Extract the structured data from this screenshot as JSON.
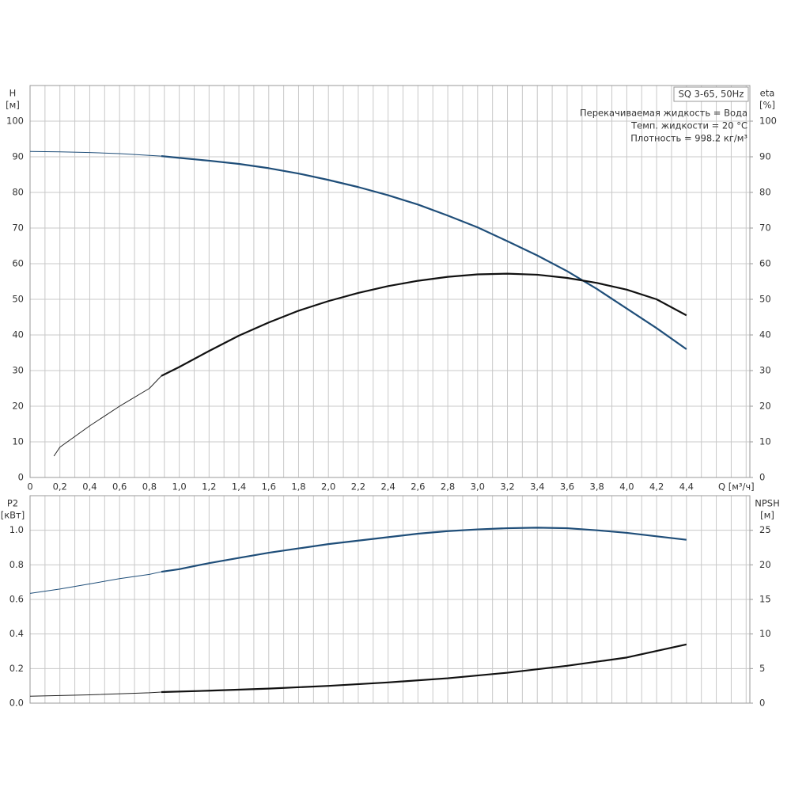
{
  "chart_data": [
    {
      "type": "line",
      "y_label": [
        "H",
        "[м]"
      ],
      "y2_label": [
        "eta",
        "[%]"
      ],
      "x_label": "Q [м³/ч]",
      "box_label": "SQ 3-65, 50Hz",
      "annotations": [
        "Перекачиваемая жидкость = Вода",
        "Темп. жидкости = 20 °C",
        "Плотность = 998.2 кг/м³"
      ],
      "xlim": [
        0,
        4.825
      ],
      "ylim": [
        0,
        110
      ],
      "y2lim": [
        0,
        110
      ],
      "xticks": [
        0,
        {
          "value": 0.2,
          "label": "0,2"
        },
        {
          "value": 0.4,
          "label": "0,4"
        },
        {
          "value": 0.6,
          "label": "0,6"
        },
        {
          "value": 0.8,
          "label": "0,8"
        },
        {
          "value": 1.0,
          "label": "1,0"
        },
        {
          "value": 1.2,
          "label": "1,2"
        },
        {
          "value": 1.4,
          "label": "1,4"
        },
        {
          "value": 1.6,
          "label": "1,6"
        },
        {
          "value": 1.8,
          "label": "1,8"
        },
        {
          "value": 2.0,
          "label": "2,0"
        },
        {
          "value": 2.2,
          "label": "2,2"
        },
        {
          "value": 2.4,
          "label": "2,4"
        },
        {
          "value": 2.6,
          "label": "2,6"
        },
        {
          "value": 2.8,
          "label": "2,8"
        },
        {
          "value": 3.0,
          "label": "3,0"
        },
        {
          "value": 3.2,
          "label": "3,2"
        },
        {
          "value": 3.4,
          "label": "3,4"
        },
        {
          "value": 3.6,
          "label": "3,6"
        },
        {
          "value": 3.8,
          "label": "3,8"
        },
        {
          "value": 4.0,
          "label": "4,0"
        },
        {
          "value": 4.2,
          "label": "4,2"
        },
        {
          "value": 4.4,
          "label": "4,4"
        }
      ],
      "x_minor_ticks": [
        0.1,
        0.3,
        0.5,
        0.7,
        0.9,
        1.1,
        1.3,
        1.5,
        1.7,
        1.9,
        2.1,
        2.3,
        2.5,
        2.7,
        2.9,
        3.1,
        3.3,
        3.5,
        3.7,
        3.9,
        4.1,
        4.3,
        4.5,
        4.6,
        4.7,
        4.8
      ],
      "yticks": [
        0,
        10,
        20,
        30,
        40,
        50,
        60,
        70,
        80,
        90,
        100
      ],
      "y2ticks": [
        0,
        10,
        20,
        30,
        40,
        50,
        60,
        70,
        80,
        90,
        100
      ],
      "grid": true,
      "series": [
        {
          "color": "#1f4e79",
          "width": 1,
          "x": [
            0,
            0.2,
            0.4,
            0.6,
            0.8,
            0.88
          ],
          "values": [
            91.5,
            91.4,
            91.2,
            90.9,
            90.4,
            90.2
          ]
        },
        {
          "color": "#1f4e79",
          "width": 2.2,
          "x": [
            0.88,
            1.0,
            1.2,
            1.4,
            1.6,
            1.8,
            2.0,
            2.2,
            2.4,
            2.6,
            2.8,
            3.0,
            3.2,
            3.4,
            3.6,
            3.8,
            4.0,
            4.2,
            4.4
          ],
          "values": [
            90.2,
            89.7,
            88.9,
            88.0,
            86.8,
            85.3,
            83.5,
            81.5,
            79.2,
            76.6,
            73.5,
            70.2,
            66.3,
            62.3,
            57.9,
            52.9,
            47.4,
            41.9,
            36.0
          ]
        },
        {
          "color": "#222222",
          "width": 1,
          "axis": "y2",
          "x": [
            0.16,
            0.2,
            0.4,
            0.6,
            0.8,
            0.88
          ],
          "values": [
            6,
            8.5,
            14.5,
            20,
            25,
            28.5
          ]
        },
        {
          "color": "#111111",
          "width": 2.2,
          "axis": "y2",
          "x": [
            0.88,
            1.0,
            1.2,
            1.4,
            1.6,
            1.8,
            2.0,
            2.2,
            2.4,
            2.6,
            2.8,
            3.0,
            3.2,
            3.4,
            3.6,
            3.8,
            4.0,
            4.2,
            4.4
          ],
          "values": [
            28.5,
            31,
            35.5,
            39.8,
            43.5,
            46.8,
            49.5,
            51.8,
            53.7,
            55.2,
            56.3,
            57,
            57.2,
            56.9,
            56,
            54.6,
            52.7,
            50,
            45.5
          ]
        }
      ]
    },
    {
      "type": "line",
      "y_label": [
        "P2",
        "[кВт]"
      ],
      "y2_label": [
        "NPSH",
        "[м]"
      ],
      "xlim": [
        0,
        4.825
      ],
      "ylim": [
        0,
        1.2
      ],
      "y2lim": [
        0,
        30
      ],
      "xgrid": [
        0,
        0.1,
        0.2,
        0.3,
        0.4,
        0.5,
        0.6,
        0.7,
        0.8,
        0.9,
        1.0,
        1.1,
        1.2,
        1.3,
        1.4,
        1.5,
        1.6,
        1.7,
        1.8,
        1.9,
        2.0,
        2.1,
        2.2,
        2.3,
        2.4,
        2.5,
        2.6,
        2.7,
        2.8,
        2.9,
        3.0,
        3.1,
        3.2,
        3.3,
        3.4,
        3.5,
        3.6,
        3.7,
        3.8,
        3.9,
        4.0,
        4.1,
        4.2,
        4.3,
        4.4,
        4.5,
        4.6,
        4.7,
        4.8
      ],
      "yticks": [
        {
          "value": 0,
          "label": "0.0"
        },
        {
          "value": 0.2,
          "label": "0.2"
        },
        {
          "value": 0.4,
          "label": "0.4"
        },
        {
          "value": 0.6,
          "label": "0.6"
        },
        {
          "value": 0.8,
          "label": "0.8"
        },
        {
          "value": 1.0,
          "label": "1.0"
        }
      ],
      "y2ticks": [
        0,
        5,
        10,
        15,
        20,
        25
      ],
      "grid": true,
      "series": [
        {
          "color": "#1f4e79",
          "width": 1,
          "x": [
            0,
            0.2,
            0.4,
            0.6,
            0.8,
            0.88
          ],
          "values": [
            0.635,
            0.66,
            0.69,
            0.72,
            0.745,
            0.76
          ]
        },
        {
          "color": "#1f4e79",
          "width": 2.2,
          "x": [
            0.88,
            1.0,
            1.2,
            1.4,
            1.6,
            1.8,
            2.0,
            2.2,
            2.4,
            2.6,
            2.8,
            3.0,
            3.2,
            3.4,
            3.6,
            3.8,
            4.0,
            4.2,
            4.4
          ],
          "values": [
            0.76,
            0.775,
            0.81,
            0.84,
            0.87,
            0.895,
            0.92,
            0.94,
            0.96,
            0.98,
            0.995,
            1.005,
            1.012,
            1.015,
            1.012,
            1.0,
            0.985,
            0.965,
            0.945
          ]
        },
        {
          "color": "#222222",
          "width": 1,
          "axis": "y2",
          "x": [
            0,
            0.4,
            0.8,
            0.88
          ],
          "values": [
            1.0,
            1.2,
            1.5,
            1.6
          ]
        },
        {
          "color": "#111111",
          "width": 2.2,
          "axis": "y2",
          "x": [
            0.88,
            1.2,
            1.6,
            2.0,
            2.4,
            2.8,
            3.2,
            3.6,
            4.0,
            4.4
          ],
          "values": [
            1.6,
            1.8,
            2.1,
            2.5,
            3.0,
            3.6,
            4.4,
            5.4,
            6.6,
            8.5
          ]
        }
      ]
    }
  ]
}
